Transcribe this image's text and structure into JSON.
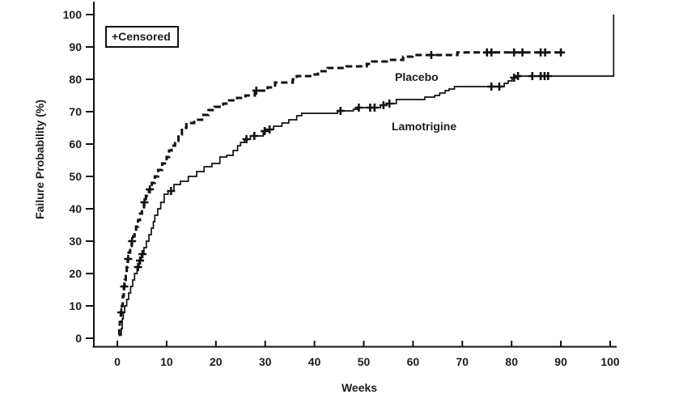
{
  "labels": {
    "y_axis": "Failure Probability (%)",
    "x_axis": "Weeks",
    "legend": "+Censored",
    "placebo": "Placebo",
    "lamotrigine": "Lamotrigine"
  },
  "colors": {
    "line": "#111111",
    "text": "#1c1c1c",
    "background": "#ffffff"
  },
  "chart_data": {
    "type": "line",
    "subtype": "kaplan-meier-failure-step",
    "title": "",
    "xlabel": "Weeks",
    "ylabel": "Failure Probability (%)",
    "xlim": [
      0,
      100
    ],
    "ylim": [
      0,
      100
    ],
    "x_ticks": [
      0,
      10,
      20,
      30,
      40,
      50,
      60,
      70,
      80,
      90,
      100
    ],
    "y_ticks": [
      0,
      10,
      20,
      30,
      40,
      50,
      60,
      70,
      80,
      90,
      100
    ],
    "grid": false,
    "legend": {
      "text": "+Censored",
      "position": "top-left"
    },
    "series": [
      {
        "name": "Placebo",
        "line_style": "dashed",
        "stroke_width": 3,
        "steps": [
          [
            0.3,
            1
          ],
          [
            0.4,
            3
          ],
          [
            0.5,
            5
          ],
          [
            0.7,
            8
          ],
          [
            0.9,
            10
          ],
          [
            1.1,
            13
          ],
          [
            1.3,
            16
          ],
          [
            1.5,
            18
          ],
          [
            1.7,
            20
          ],
          [
            1.9,
            22
          ],
          [
            2.1,
            24.5
          ],
          [
            2.3,
            26.5
          ],
          [
            2.6,
            28.5
          ],
          [
            2.9,
            30
          ],
          [
            3.2,
            31.5
          ],
          [
            3.5,
            33
          ],
          [
            3.8,
            34.5
          ],
          [
            4.2,
            36.5
          ],
          [
            4.6,
            38.5
          ],
          [
            5.0,
            40
          ],
          [
            5.4,
            42
          ],
          [
            5.8,
            44
          ],
          [
            6.4,
            46
          ],
          [
            7.0,
            48
          ],
          [
            7.6,
            50
          ],
          [
            8.3,
            52
          ],
          [
            9.1,
            54
          ],
          [
            10.0,
            56
          ],
          [
            10.5,
            58
          ],
          [
            11.0,
            59.5
          ],
          [
            11.7,
            61
          ],
          [
            12.4,
            63
          ],
          [
            13.1,
            65
          ],
          [
            14.0,
            66.5
          ],
          [
            15.6,
            67.5
          ],
          [
            17.2,
            69
          ],
          [
            18.5,
            70.5
          ],
          [
            19.7,
            71.5
          ],
          [
            21.5,
            72.5
          ],
          [
            22.7,
            73.5
          ],
          [
            24.3,
            74.25
          ],
          [
            26.0,
            75
          ],
          [
            27.9,
            76.5
          ],
          [
            30.5,
            77.5
          ],
          [
            32.0,
            79
          ],
          [
            35.6,
            80
          ],
          [
            36.4,
            81
          ],
          [
            39.7,
            81.5
          ],
          [
            40.7,
            82.5
          ],
          [
            42.7,
            83.5
          ],
          [
            46.5,
            84
          ],
          [
            50.6,
            84.75
          ],
          [
            51.7,
            85.5
          ],
          [
            55.0,
            86
          ],
          [
            58.0,
            87
          ],
          [
            59.9,
            87.5
          ],
          [
            69.0,
            88.3
          ],
          [
            90.3,
            88.3
          ]
        ],
        "censored": [
          [
            0.8,
            8
          ],
          [
            1.4,
            16
          ],
          [
            2.2,
            24.5
          ],
          [
            3.0,
            30
          ],
          [
            5.5,
            42
          ],
          [
            6.6,
            46
          ],
          [
            28.2,
            76.5
          ],
          [
            63.7,
            87.5
          ],
          [
            75.0,
            88.3
          ],
          [
            75.9,
            88.3
          ],
          [
            80.5,
            88.3
          ],
          [
            82.2,
            88.3
          ],
          [
            85.9,
            88.3
          ],
          [
            86.8,
            88.3
          ],
          [
            90.0,
            88.3
          ]
        ]
      },
      {
        "name": "Lamotrigine",
        "line_style": "solid",
        "stroke_width": 1.7,
        "steps": [
          [
            0.5,
            1
          ],
          [
            0.8,
            3
          ],
          [
            1.0,
            6
          ],
          [
            1.2,
            8
          ],
          [
            1.5,
            10
          ],
          [
            1.9,
            12
          ],
          [
            2.3,
            14
          ],
          [
            2.7,
            16
          ],
          [
            3.1,
            18
          ],
          [
            3.5,
            20
          ],
          [
            4.0,
            22
          ],
          [
            4.4,
            24
          ],
          [
            4.9,
            26
          ],
          [
            5.4,
            28
          ],
          [
            5.9,
            30
          ],
          [
            6.4,
            32
          ],
          [
            6.9,
            34
          ],
          [
            7.3,
            36
          ],
          [
            7.6,
            38
          ],
          [
            8.2,
            40
          ],
          [
            8.8,
            42
          ],
          [
            9.5,
            44.5
          ],
          [
            10.3,
            45.5
          ],
          [
            11.5,
            47.5
          ],
          [
            12.8,
            48.5
          ],
          [
            14.4,
            50
          ],
          [
            16.1,
            51.5
          ],
          [
            17.6,
            53
          ],
          [
            19.2,
            54
          ],
          [
            20.8,
            56
          ],
          [
            22.2,
            56.5
          ],
          [
            23.5,
            58
          ],
          [
            24.4,
            59.5
          ],
          [
            25.0,
            60.5
          ],
          [
            25.8,
            61.5
          ],
          [
            27.0,
            62.5
          ],
          [
            29.6,
            64
          ],
          [
            30.4,
            64.5
          ],
          [
            31.7,
            65.5
          ],
          [
            33.4,
            66.5
          ],
          [
            34.8,
            67.5
          ],
          [
            36.4,
            68.75
          ],
          [
            37.4,
            69.5
          ],
          [
            44.7,
            70.25
          ],
          [
            47.9,
            70.75
          ],
          [
            48.8,
            71.25
          ],
          [
            53.4,
            72
          ],
          [
            54.7,
            72.5
          ],
          [
            56.6,
            73.75
          ],
          [
            62.4,
            74.5
          ],
          [
            64.4,
            75
          ],
          [
            65.4,
            75.75
          ],
          [
            66.5,
            76.5
          ],
          [
            67.3,
            77
          ],
          [
            68.4,
            77.75
          ],
          [
            78.5,
            78.75
          ],
          [
            79.3,
            79.5
          ],
          [
            80.1,
            80.5
          ],
          [
            81.0,
            81
          ],
          [
            100.7,
            81
          ],
          [
            100.7,
            100
          ]
        ],
        "censored": [
          [
            4.2,
            22
          ],
          [
            4.6,
            24
          ],
          [
            5.1,
            26
          ],
          [
            10.9,
            45.5
          ],
          [
            26.2,
            61.5
          ],
          [
            27.8,
            62.5
          ],
          [
            29.9,
            64
          ],
          [
            30.9,
            64.5
          ],
          [
            45.3,
            70.25
          ],
          [
            49.0,
            71.25
          ],
          [
            51.3,
            71.25
          ],
          [
            52.2,
            71.25
          ],
          [
            54.0,
            72
          ],
          [
            55.2,
            72.5
          ],
          [
            75.9,
            77.75
          ],
          [
            77.5,
            77.75
          ],
          [
            80.5,
            80.5
          ],
          [
            81.3,
            81
          ],
          [
            84.2,
            81
          ],
          [
            85.9,
            81
          ],
          [
            86.7,
            81
          ],
          [
            87.4,
            81
          ]
        ]
      }
    ]
  }
}
